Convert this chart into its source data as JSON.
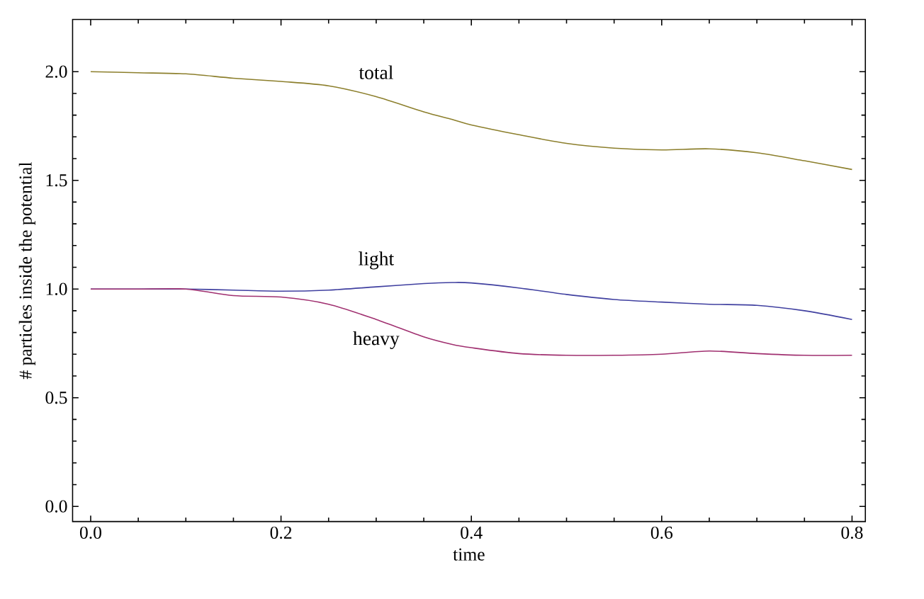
{
  "chart_data": {
    "type": "line",
    "xlabel": "time",
    "ylabel": "# particles inside the potential",
    "xlim": [
      -0.019,
      0.814
    ],
    "ylim": [
      -0.07,
      2.24
    ],
    "xticks": [
      {
        "value": 0,
        "label": "0.0"
      },
      0.2,
      0.4,
      0.6,
      0.8
    ],
    "yticks": [
      {
        "value": 0,
        "label": "0.0"
      },
      0.5,
      {
        "value": 1,
        "label": "1.0"
      },
      1.5,
      {
        "value": 2,
        "label": "2.0"
      }
    ],
    "x": [
      0,
      0.05,
      0.1,
      0.15,
      0.2,
      0.25,
      0.3,
      0.35,
      0.38,
      0.4,
      0.45,
      0.5,
      0.55,
      0.6,
      0.65,
      0.7,
      0.75,
      0.8
    ],
    "series": [
      {
        "name": "total",
        "color": "#8c7f2c",
        "values": [
          2.0,
          1.995,
          1.99,
          1.97,
          1.955,
          1.935,
          1.885,
          1.815,
          1.78,
          1.755,
          1.71,
          1.67,
          1.648,
          1.64,
          1.645,
          1.627,
          1.59,
          1.55
        ]
      },
      {
        "name": "light",
        "color": "#4040a0",
        "values": [
          1.0,
          1.0,
          1.0,
          0.995,
          0.99,
          0.995,
          1.01,
          1.025,
          1.03,
          1.028,
          1.005,
          0.975,
          0.952,
          0.94,
          0.93,
          0.925,
          0.9,
          0.86
        ]
      },
      {
        "name": "heavy",
        "color": "#a03070",
        "values": [
          1.0,
          1.0,
          1.0,
          0.97,
          0.963,
          0.93,
          0.86,
          0.78,
          0.745,
          0.73,
          0.703,
          0.695,
          0.695,
          0.7,
          0.715,
          0.703,
          0.695,
          0.695
        ]
      }
    ],
    "grid": false,
    "marker": "none",
    "line_style": "solid"
  }
}
